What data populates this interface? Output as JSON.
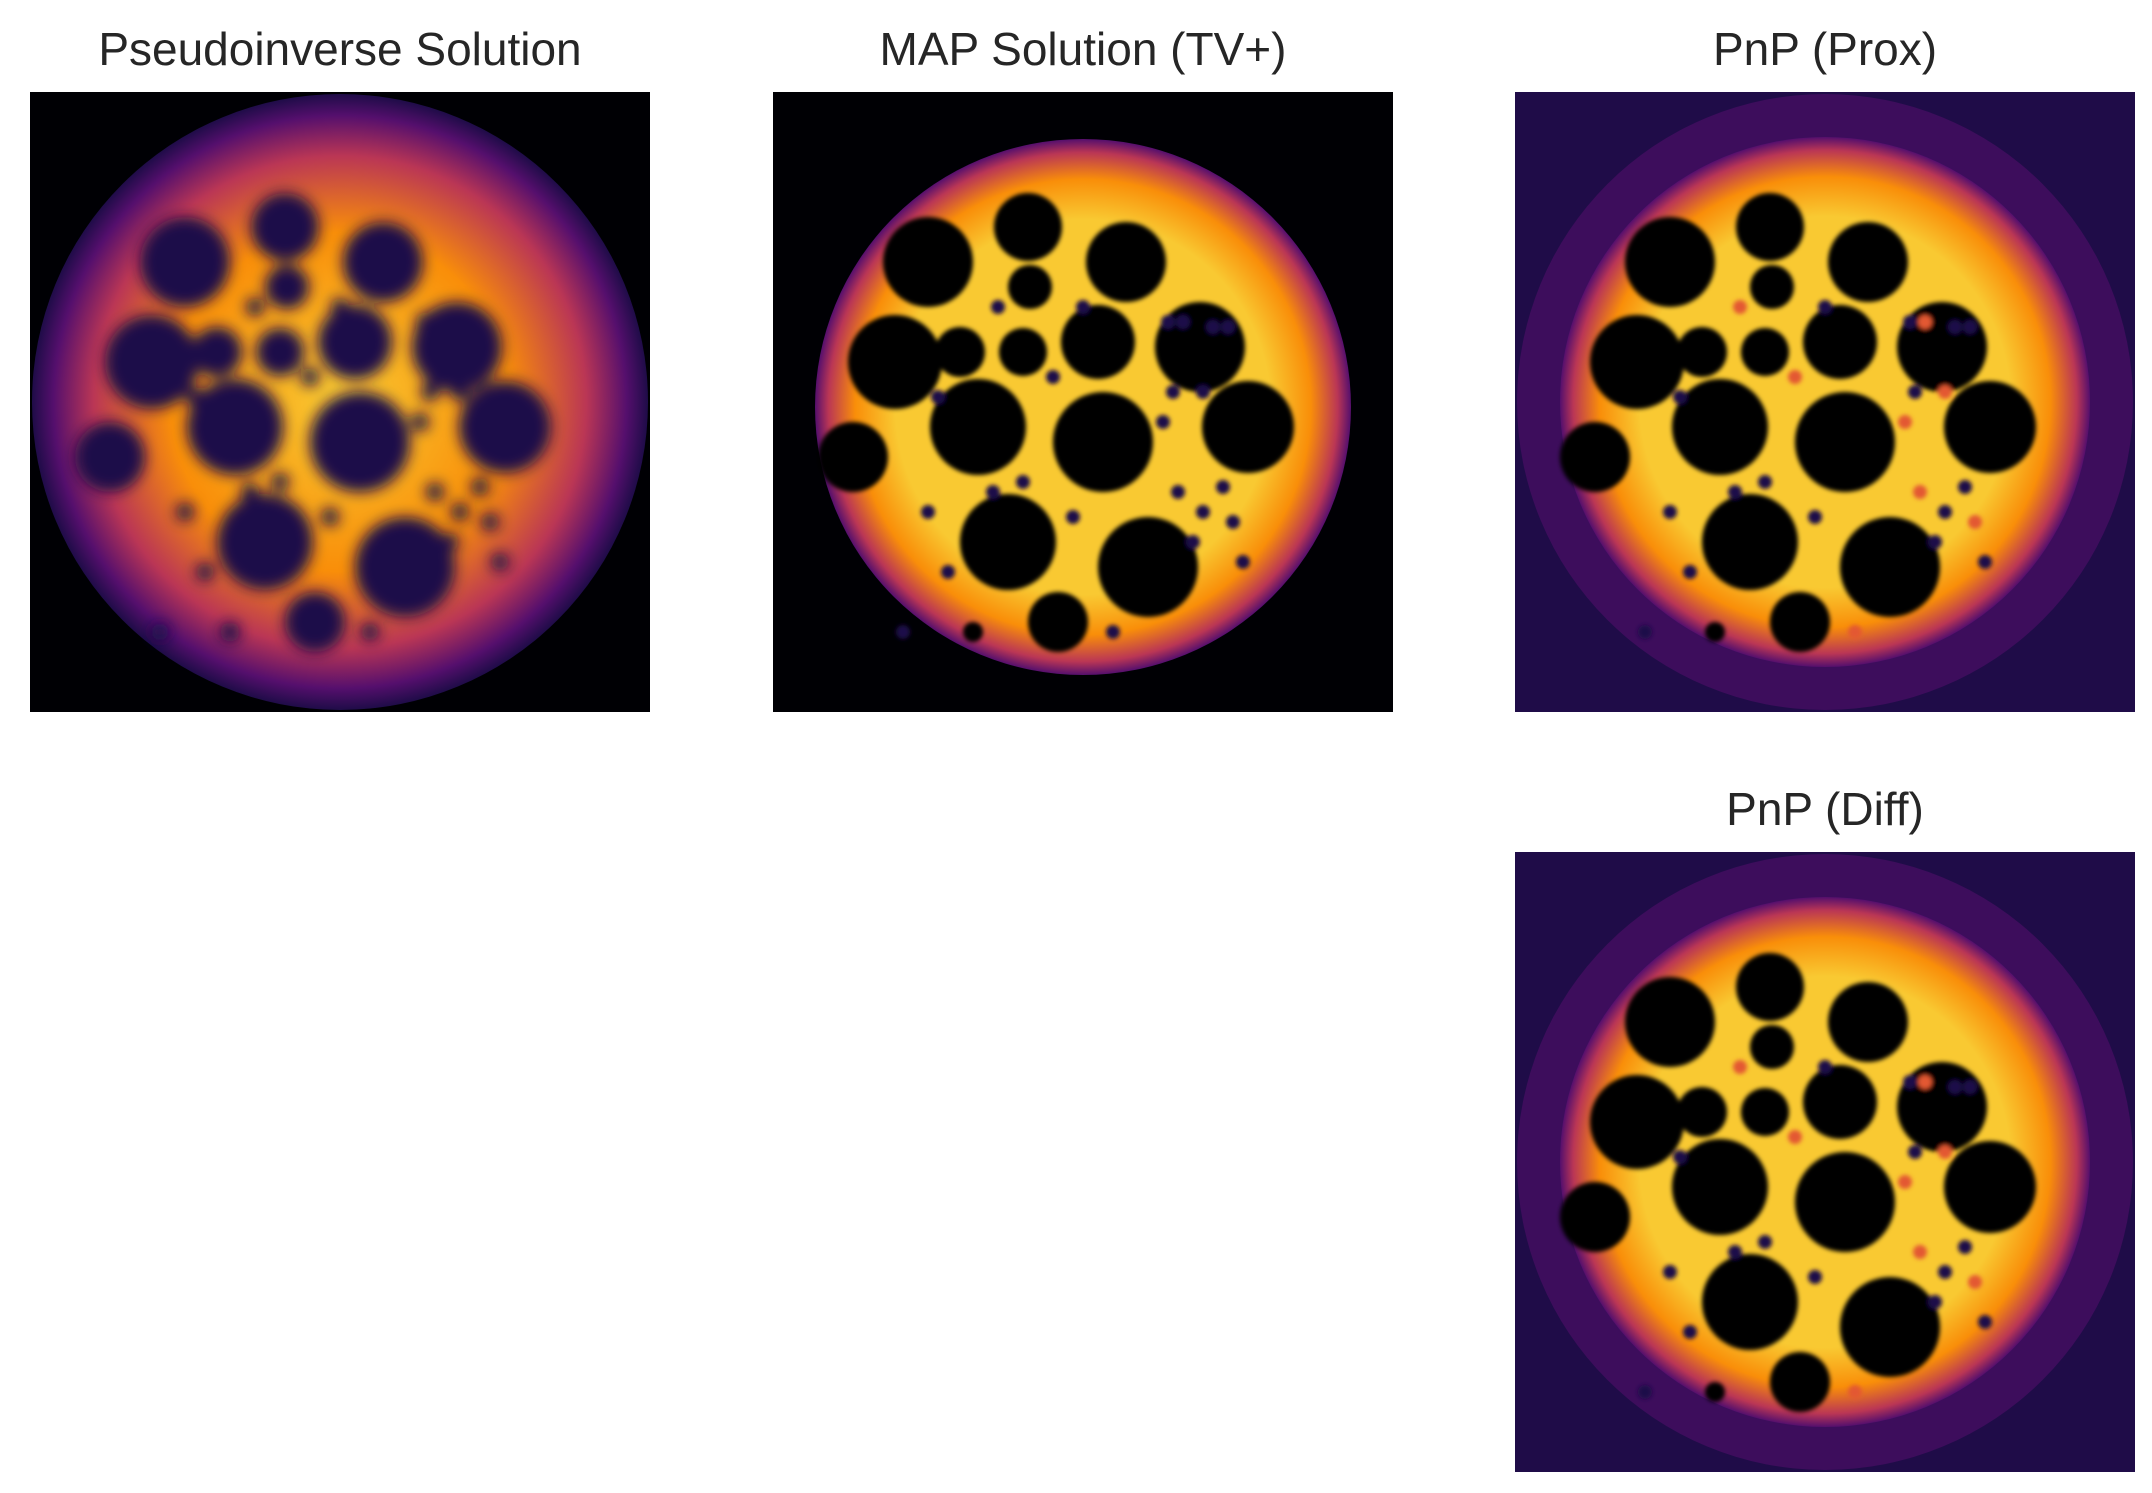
{
  "figure": {
    "panels": [
      {
        "title": "Pseudoinverse Solution",
        "background": "#000004",
        "style": "blurred"
      },
      {
        "title": "MAP Solution (TV+)",
        "background": "#000004",
        "style": "sharp"
      },
      {
        "title": "PnP (Prox)",
        "background": "#1f0c48",
        "style": "sharp"
      },
      {
        "title": "PnP (Diff)",
        "background": "#1f0c48",
        "style": "sharp"
      }
    ],
    "colormap": [
      "#000004",
      "#1f0c48",
      "#550f6d",
      "#88226a",
      "#ba3655",
      "#e35933",
      "#f98e09",
      "#f9c932",
      "#fcffa4"
    ]
  }
}
